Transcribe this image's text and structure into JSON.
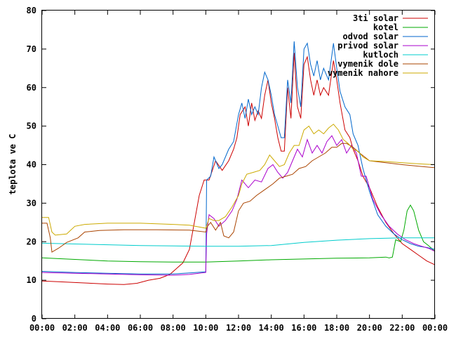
{
  "chart_data": {
    "type": "line",
    "title": "",
    "xlabel": "",
    "ylabel": "teplota ve C",
    "xlim": [
      0,
      24
    ],
    "ylim": [
      0,
      80
    ],
    "x_ticks": [
      0,
      2,
      4,
      6,
      8,
      10,
      12,
      14,
      16,
      18,
      20,
      22,
      24
    ],
    "x_tick_labels": [
      "00:00",
      "02:00",
      "04:00",
      "06:00",
      "08:00",
      "10:00",
      "12:00",
      "14:00",
      "16:00",
      "18:00",
      "20:00",
      "22:00",
      "00:00"
    ],
    "y_ticks": [
      0,
      10,
      20,
      30,
      40,
      50,
      60,
      70,
      80
    ],
    "grid": false,
    "legend_position": "top-right",
    "series": [
      {
        "name": "3ti solar",
        "color": "#cc0000",
        "points": [
          [
            0,
            9.8
          ],
          [
            1,
            9.6
          ],
          [
            2,
            9.4
          ],
          [
            3,
            9.2
          ],
          [
            4,
            9.0
          ],
          [
            5,
            8.9
          ],
          [
            5.8,
            9.2
          ],
          [
            6.5,
            10
          ],
          [
            7.2,
            10.5
          ],
          [
            7.8,
            11.5
          ],
          [
            8.2,
            13
          ],
          [
            8.6,
            14.5
          ],
          [
            9.0,
            18
          ],
          [
            9.3,
            25
          ],
          [
            9.6,
            32
          ],
          [
            9.9,
            36
          ],
          [
            10.2,
            36
          ],
          [
            10.6,
            41
          ],
          [
            11.0,
            38.5
          ],
          [
            11.4,
            41
          ],
          [
            11.7,
            44
          ],
          [
            11.9,
            47
          ],
          [
            12.1,
            53
          ],
          [
            12.4,
            55
          ],
          [
            12.6,
            50
          ],
          [
            12.8,
            56
          ],
          [
            13.0,
            51.5
          ],
          [
            13.2,
            54
          ],
          [
            13.4,
            52
          ],
          [
            13.6,
            58
          ],
          [
            13.8,
            62
          ],
          [
            14.0,
            56
          ],
          [
            14.2,
            52
          ],
          [
            14.4,
            47
          ],
          [
            14.6,
            43.5
          ],
          [
            14.8,
            43.5
          ],
          [
            15.0,
            60
          ],
          [
            15.2,
            52
          ],
          [
            15.4,
            69
          ],
          [
            15.6,
            55
          ],
          [
            15.8,
            52
          ],
          [
            16.0,
            66
          ],
          [
            16.2,
            68
          ],
          [
            16.4,
            62
          ],
          [
            16.6,
            58
          ],
          [
            16.8,
            62
          ],
          [
            17.0,
            58
          ],
          [
            17.2,
            60
          ],
          [
            17.5,
            58
          ],
          [
            17.8,
            67
          ],
          [
            18.0,
            62
          ],
          [
            18.2,
            56
          ],
          [
            18.5,
            49
          ],
          [
            18.8,
            47
          ],
          [
            19.0,
            44
          ],
          [
            19.3,
            41
          ],
          [
            19.6,
            37
          ],
          [
            20.0,
            34
          ],
          [
            20.5,
            29
          ],
          [
            21.0,
            25
          ],
          [
            21.5,
            22
          ],
          [
            22.0,
            19.5
          ],
          [
            22.5,
            18
          ],
          [
            23.0,
            16.5
          ],
          [
            23.5,
            15
          ],
          [
            24,
            14
          ]
        ]
      },
      {
        "name": "kotel",
        "color": "#00aa00",
        "points": [
          [
            0,
            15.8
          ],
          [
            2,
            15.4
          ],
          [
            4,
            15.0
          ],
          [
            6,
            14.8
          ],
          [
            8,
            14.7
          ],
          [
            10,
            14.7
          ],
          [
            12,
            15.0
          ],
          [
            14,
            15.3
          ],
          [
            16,
            15.5
          ],
          [
            18,
            15.7
          ],
          [
            20,
            15.8
          ],
          [
            21.0,
            16
          ],
          [
            21.2,
            15.8
          ],
          [
            21.4,
            16
          ],
          [
            21.6,
            20.5
          ],
          [
            21.9,
            20
          ],
          [
            22.1,
            23
          ],
          [
            22.3,
            28
          ],
          [
            22.5,
            29.5
          ],
          [
            22.7,
            28
          ],
          [
            23.0,
            23
          ],
          [
            23.3,
            20
          ],
          [
            23.6,
            19
          ],
          [
            24,
            17.5
          ]
        ]
      },
      {
        "name": "odvod solar",
        "color": "#0066cc",
        "points": [
          [
            0,
            12.3
          ],
          [
            2,
            12.0
          ],
          [
            4,
            11.8
          ],
          [
            6,
            11.6
          ],
          [
            8,
            11.6
          ],
          [
            9.0,
            11.9
          ],
          [
            10.0,
            12.2
          ],
          [
            10.05,
            36
          ],
          [
            10.3,
            37
          ],
          [
            10.5,
            42
          ],
          [
            10.8,
            39
          ],
          [
            11.0,
            40
          ],
          [
            11.4,
            44
          ],
          [
            11.7,
            46
          ],
          [
            12.0,
            53
          ],
          [
            12.2,
            56
          ],
          [
            12.4,
            52
          ],
          [
            12.6,
            57
          ],
          [
            12.8,
            53
          ],
          [
            13.0,
            55
          ],
          [
            13.2,
            53
          ],
          [
            13.4,
            60
          ],
          [
            13.6,
            64
          ],
          [
            13.8,
            62
          ],
          [
            14.0,
            58
          ],
          [
            14.2,
            53
          ],
          [
            14.4,
            50
          ],
          [
            14.6,
            47
          ],
          [
            14.8,
            47
          ],
          [
            15.0,
            62
          ],
          [
            15.2,
            56
          ],
          [
            15.4,
            72
          ],
          [
            15.6,
            60
          ],
          [
            15.8,
            55
          ],
          [
            16.0,
            70
          ],
          [
            16.2,
            71.5
          ],
          [
            16.4,
            66
          ],
          [
            16.6,
            63
          ],
          [
            16.8,
            67
          ],
          [
            17.0,
            62
          ],
          [
            17.2,
            65
          ],
          [
            17.5,
            62
          ],
          [
            17.8,
            71.5
          ],
          [
            18.0,
            65
          ],
          [
            18.2,
            59
          ],
          [
            18.5,
            55
          ],
          [
            18.8,
            53
          ],
          [
            19.0,
            48
          ],
          [
            19.3,
            45
          ],
          [
            19.6,
            39
          ],
          [
            20.0,
            33
          ],
          [
            20.5,
            27
          ],
          [
            21.0,
            24
          ],
          [
            21.5,
            22
          ],
          [
            22.0,
            20.5
          ],
          [
            22.5,
            19.5
          ],
          [
            23.0,
            18.8
          ],
          [
            23.5,
            18.5
          ],
          [
            24,
            18
          ]
        ]
      },
      {
        "name": "privod solar",
        "color": "#aa00cc",
        "points": [
          [
            0,
            12.0
          ],
          [
            2,
            11.8
          ],
          [
            4,
            11.6
          ],
          [
            6,
            11.4
          ],
          [
            8,
            11.3
          ],
          [
            9.0,
            11.5
          ],
          [
            10.0,
            12.0
          ],
          [
            10.05,
            22
          ],
          [
            10.2,
            27
          ],
          [
            10.5,
            26
          ],
          [
            10.8,
            24
          ],
          [
            11.2,
            25.5
          ],
          [
            11.6,
            28
          ],
          [
            11.9,
            31
          ],
          [
            12.2,
            36
          ],
          [
            12.6,
            34
          ],
          [
            13.0,
            36
          ],
          [
            13.4,
            35.5
          ],
          [
            13.8,
            39
          ],
          [
            14.1,
            40
          ],
          [
            14.4,
            38
          ],
          [
            14.7,
            36.5
          ],
          [
            15.0,
            38
          ],
          [
            15.3,
            41
          ],
          [
            15.6,
            44
          ],
          [
            15.9,
            42
          ],
          [
            16.2,
            46.5
          ],
          [
            16.5,
            43
          ],
          [
            16.8,
            45
          ],
          [
            17.1,
            43
          ],
          [
            17.4,
            46
          ],
          [
            17.7,
            47.5
          ],
          [
            18.0,
            45
          ],
          [
            18.3,
            46.5
          ],
          [
            18.6,
            43
          ],
          [
            18.9,
            45
          ],
          [
            19.2,
            43
          ],
          [
            19.5,
            37
          ],
          [
            19.8,
            37
          ],
          [
            20.2,
            31
          ],
          [
            20.7,
            27
          ],
          [
            21.2,
            24
          ],
          [
            21.7,
            22
          ],
          [
            22.2,
            20.5
          ],
          [
            22.7,
            19.5
          ],
          [
            23.2,
            18.8
          ],
          [
            23.6,
            18.3
          ],
          [
            24,
            17.5
          ]
        ]
      },
      {
        "name": "kutloch",
        "color": "#00cccc",
        "points": [
          [
            0,
            19.6
          ],
          [
            2,
            19.4
          ],
          [
            4,
            19.2
          ],
          [
            6,
            19.0
          ],
          [
            8,
            18.9
          ],
          [
            10,
            18.8
          ],
          [
            12,
            18.8
          ],
          [
            14,
            19.0
          ],
          [
            16,
            19.8
          ],
          [
            18,
            20.4
          ],
          [
            20,
            20.8
          ],
          [
            22,
            21.0
          ],
          [
            24,
            21.0
          ]
        ]
      },
      {
        "name": "vymenik dole",
        "color": "#aa4400",
        "points": [
          [
            0,
            24.8
          ],
          [
            0.3,
            24.8
          ],
          [
            0.5,
            21
          ],
          [
            0.6,
            17.3
          ],
          [
            1.0,
            18.3
          ],
          [
            1.5,
            19.8
          ],
          [
            2.2,
            21
          ],
          [
            2.6,
            22.5
          ],
          [
            3.5,
            22.9
          ],
          [
            5,
            23.1
          ],
          [
            7,
            23.1
          ],
          [
            9,
            23.0
          ],
          [
            10,
            22.5
          ],
          [
            10.1,
            24
          ],
          [
            10.3,
            25
          ],
          [
            10.6,
            23
          ],
          [
            10.9,
            25
          ],
          [
            11.1,
            21.5
          ],
          [
            11.4,
            21
          ],
          [
            11.7,
            22.5
          ],
          [
            12.0,
            28
          ],
          [
            12.3,
            30
          ],
          [
            12.7,
            30.5
          ],
          [
            13.1,
            32
          ],
          [
            13.6,
            33.5
          ],
          [
            14.1,
            35
          ],
          [
            14.5,
            36.5
          ],
          [
            14.9,
            37
          ],
          [
            15.3,
            37.5
          ],
          [
            15.7,
            39
          ],
          [
            16.1,
            39.5
          ],
          [
            16.5,
            41
          ],
          [
            16.9,
            42
          ],
          [
            17.3,
            43
          ],
          [
            17.7,
            44.5
          ],
          [
            18.0,
            44.5
          ],
          [
            18.3,
            45.5
          ],
          [
            18.6,
            45.5
          ],
          [
            19.0,
            44.5
          ],
          [
            19.4,
            43
          ],
          [
            20.0,
            41
          ],
          [
            21,
            40.5
          ],
          [
            22,
            40.0
          ],
          [
            23,
            39.6
          ],
          [
            24,
            39.2
          ]
        ]
      },
      {
        "name": "vymenik nahore",
        "color": "#ccaa00",
        "points": [
          [
            0,
            26.3
          ],
          [
            0.4,
            26.3
          ],
          [
            0.6,
            22.5
          ],
          [
            0.8,
            21.7
          ],
          [
            1.5,
            22
          ],
          [
            2.0,
            24
          ],
          [
            2.6,
            24.5
          ],
          [
            4,
            24.8
          ],
          [
            6,
            24.8
          ],
          [
            8,
            24.5
          ],
          [
            9,
            24.3
          ],
          [
            10,
            23.5
          ],
          [
            10.2,
            26
          ],
          [
            10.5,
            25.5
          ],
          [
            10.8,
            25.5
          ],
          [
            11.2,
            26.5
          ],
          [
            11.6,
            29
          ],
          [
            12.0,
            32
          ],
          [
            12.2,
            35
          ],
          [
            12.5,
            37.5
          ],
          [
            12.9,
            38
          ],
          [
            13.3,
            38.5
          ],
          [
            13.6,
            40
          ],
          [
            13.9,
            42.5
          ],
          [
            14.2,
            41
          ],
          [
            14.5,
            39.5
          ],
          [
            14.8,
            40
          ],
          [
            15.1,
            43
          ],
          [
            15.4,
            45
          ],
          [
            15.7,
            45
          ],
          [
            16.0,
            49
          ],
          [
            16.3,
            50
          ],
          [
            16.6,
            48
          ],
          [
            16.9,
            49
          ],
          [
            17.2,
            48
          ],
          [
            17.5,
            49.5
          ],
          [
            17.8,
            50.5
          ],
          [
            18.1,
            49
          ],
          [
            18.4,
            46.5
          ],
          [
            18.7,
            45.5
          ],
          [
            19.0,
            44
          ],
          [
            19.3,
            43.5
          ],
          [
            19.6,
            42
          ],
          [
            20.0,
            41
          ],
          [
            21,
            40.8
          ],
          [
            22,
            40.5
          ],
          [
            23,
            40.2
          ],
          [
            24,
            40.0
          ]
        ]
      }
    ]
  }
}
